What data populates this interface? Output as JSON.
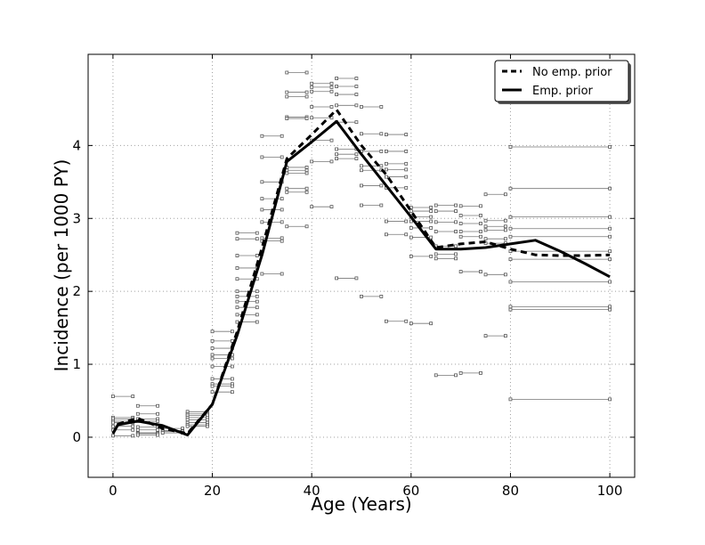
{
  "chart_data": {
    "type": "line",
    "title": "",
    "xlabel": "Age (Years)",
    "ylabel": "Incidence (per 1000 PY)",
    "xlim": [
      -5,
      105
    ],
    "ylim": [
      -0.55,
      5.25
    ],
    "xticks": [
      0,
      20,
      40,
      60,
      80,
      100
    ],
    "yticks": [
      0,
      1,
      2,
      3,
      4
    ],
    "grid": true,
    "legend_position": "top-right",
    "series": [
      {
        "name": "No emp. prior",
        "style": "dashed",
        "x": [
          0,
          1,
          5,
          10,
          15,
          20,
          25,
          30,
          35,
          40,
          45,
          50,
          55,
          60,
          65,
          70,
          75,
          80,
          85,
          90,
          95,
          100
        ],
        "y": [
          0.05,
          0.18,
          0.26,
          0.12,
          0.05,
          0.45,
          1.45,
          2.6,
          3.82,
          4.15,
          4.49,
          4.0,
          3.6,
          3.1,
          2.6,
          2.65,
          2.68,
          2.58,
          2.5,
          2.49,
          2.49,
          2.5
        ]
      },
      {
        "name": "Emp. prior",
        "style": "solid",
        "x": [
          0,
          1,
          5,
          10,
          15,
          20,
          25,
          30,
          35,
          40,
          45,
          50,
          55,
          60,
          65,
          70,
          75,
          80,
          85,
          90,
          95,
          100
        ],
        "y": [
          0.05,
          0.17,
          0.22,
          0.16,
          0.03,
          0.45,
          1.4,
          2.5,
          3.78,
          4.05,
          4.33,
          3.88,
          3.45,
          3.02,
          2.58,
          2.58,
          2.6,
          2.65,
          2.7,
          2.55,
          2.38,
          2.2
        ]
      }
    ],
    "observations": [
      {
        "x0": 0,
        "x1": 4,
        "values": [
          0.56,
          0.27,
          0.25,
          0.22,
          0.2,
          0.15,
          0.1,
          0.02
        ]
      },
      {
        "x0": 5,
        "x1": 9,
        "values": [
          0.43,
          0.32,
          0.25,
          0.22,
          0.14,
          0.1,
          0.06,
          0.05,
          0.03
        ]
      },
      {
        "x0": 10,
        "x1": 14,
        "values": [
          0.12,
          0.09,
          0.08,
          0.06
        ]
      },
      {
        "x0": 15,
        "x1": 19,
        "values": [
          0.35,
          0.32,
          0.3,
          0.27,
          0.24,
          0.2,
          0.17,
          0.15
        ]
      },
      {
        "x0": 20,
        "x1": 24,
        "values": [
          1.45,
          1.32,
          1.22,
          1.13,
          1.08,
          0.97,
          0.8,
          0.73,
          0.7,
          0.62
        ]
      },
      {
        "x0": 25,
        "x1": 29,
        "values": [
          2.8,
          2.72,
          2.49,
          2.32,
          2.17,
          2.0,
          1.93,
          1.86,
          1.78,
          1.68,
          1.58
        ]
      },
      {
        "x0": 30,
        "x1": 34,
        "values": [
          4.13,
          3.84,
          3.5,
          3.27,
          3.12,
          2.95,
          2.73,
          2.69,
          2.24
        ]
      },
      {
        "x0": 35,
        "x1": 39,
        "values": [
          5.0,
          4.73,
          4.67,
          4.39,
          4.37,
          3.7,
          3.66,
          3.62,
          3.41,
          3.36,
          2.89
        ]
      },
      {
        "x0": 40,
        "x1": 44,
        "values": [
          4.85,
          4.8,
          4.74,
          4.53,
          4.38,
          4.07,
          3.78,
          3.16
        ]
      },
      {
        "x0": 45,
        "x1": 49,
        "values": [
          4.92,
          4.81,
          4.7,
          4.55,
          4.32,
          3.95,
          3.88,
          3.82,
          2.18
        ]
      },
      {
        "x0": 50,
        "x1": 54,
        "values": [
          4.53,
          4.16,
          3.92,
          3.72,
          3.66,
          3.45,
          3.18,
          1.93
        ]
      },
      {
        "x0": 55,
        "x1": 59,
        "values": [
          4.15,
          3.92,
          3.75,
          3.67,
          3.57,
          3.42,
          2.96,
          2.78,
          1.59
        ]
      },
      {
        "x0": 60,
        "x1": 64,
        "values": [
          3.15,
          3.1,
          3.02,
          2.96,
          2.87,
          2.74,
          2.48,
          1.56
        ]
      },
      {
        "x0": 65,
        "x1": 69,
        "values": [
          3.18,
          3.1,
          2.95,
          2.82,
          2.62,
          2.51,
          2.45,
          0.85
        ]
      },
      {
        "x0": 70,
        "x1": 74,
        "values": [
          3.17,
          3.04,
          2.93,
          2.82,
          2.75,
          2.27,
          0.88
        ]
      },
      {
        "x0": 75,
        "x1": 79,
        "values": [
          3.33,
          2.97,
          2.89,
          2.84,
          2.72,
          2.66,
          2.23,
          1.39
        ]
      },
      {
        "x0": 80,
        "x1": 100,
        "values": [
          3.98,
          3.41,
          3.02,
          2.86,
          2.75,
          2.55,
          2.44,
          2.13,
          1.79,
          1.75,
          0.52
        ]
      }
    ]
  }
}
